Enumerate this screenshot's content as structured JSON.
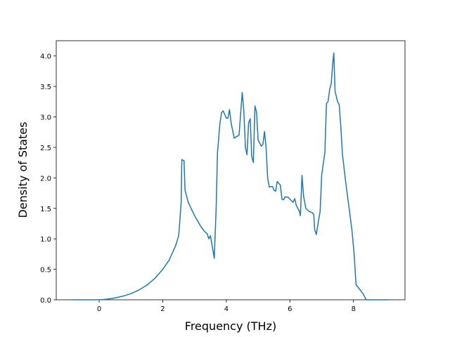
{
  "chart_data": {
    "type": "line",
    "xlabel": "Frequency (THz)",
    "ylabel": "Density of States",
    "color": "#1f77b4",
    "x": [
      -0.86,
      0,
      0.25,
      0.5,
      0.75,
      1.0,
      1.25,
      1.5,
      1.75,
      2.0,
      2.2,
      2.4,
      2.5,
      2.52,
      2.58,
      2.6,
      2.67,
      2.7,
      2.8,
      3.0,
      3.2,
      3.3,
      3.4,
      3.45,
      3.5,
      3.55,
      3.62,
      3.68,
      3.72,
      3.8,
      3.85,
      3.9,
      4.0,
      4.05,
      4.1,
      4.15,
      4.25,
      4.3,
      4.4,
      4.5,
      4.55,
      4.6,
      4.65,
      4.7,
      4.75,
      4.8,
      4.85,
      4.9,
      4.95,
      5.0,
      5.1,
      5.15,
      5.2,
      5.25,
      5.3,
      5.35,
      5.45,
      5.5,
      5.55,
      5.6,
      5.7,
      5.75,
      5.8,
      5.85,
      5.95,
      6.0,
      6.1,
      6.15,
      6.2,
      6.3,
      6.33,
      6.38,
      6.43,
      6.5,
      6.6,
      6.7,
      6.75,
      6.78,
      6.83,
      6.9,
      6.95,
      7.0,
      7.1,
      7.15,
      7.2,
      7.25,
      7.3,
      7.35,
      7.38,
      7.42,
      7.5,
      7.55,
      7.6,
      7.65,
      7.75,
      7.85,
      7.95,
      8.02,
      8.08,
      8.15,
      8.3,
      8.4,
      9.1
    ],
    "values": [
      0,
      0,
      0.01,
      0.03,
      0.06,
      0.1,
      0.16,
      0.24,
      0.35,
      0.5,
      0.65,
      0.88,
      1.05,
      1.17,
      1.6,
      2.3,
      2.28,
      1.8,
      1.6,
      1.38,
      1.2,
      1.13,
      1.08,
      1.0,
      1.05,
      0.9,
      0.68,
      1.5,
      2.4,
      2.9,
      3.07,
      3.1,
      2.98,
      2.98,
      3.12,
      2.9,
      2.65,
      2.67,
      2.7,
      3.4,
      3.1,
      2.5,
      2.38,
      2.9,
      2.97,
      2.35,
      2.25,
      3.18,
      3.08,
      2.62,
      2.52,
      2.55,
      2.76,
      2.5,
      2.0,
      1.85,
      1.86,
      1.8,
      1.78,
      1.94,
      1.88,
      1.65,
      1.64,
      1.69,
      1.68,
      1.65,
      1.6,
      1.66,
      1.55,
      1.45,
      1.38,
      2.04,
      1.7,
      1.5,
      1.45,
      1.43,
      1.4,
      1.15,
      1.07,
      1.3,
      1.45,
      2.05,
      2.42,
      3.22,
      3.25,
      3.45,
      3.55,
      3.9,
      4.05,
      3.42,
      3.25,
      3.2,
      2.85,
      2.4,
      1.95,
      1.55,
      1.15,
      0.75,
      0.25,
      0.2,
      0.1,
      0.0,
      0
    ],
    "xlim": [
      -1.35,
      9.62
    ],
    "xticks": [
      0,
      2,
      4,
      6,
      8
    ],
    "ylim": [
      0,
      4.25
    ],
    "yticks": [
      {
        "value": 0,
        "label": "0.0"
      },
      {
        "value": 0.5,
        "label": "0.5"
      },
      {
        "value": 1,
        "label": "1.0"
      },
      {
        "value": 1.5,
        "label": "1.5"
      },
      {
        "value": 2,
        "label": "2.0"
      },
      {
        "value": 2.5,
        "label": "2.5"
      },
      {
        "value": 3,
        "label": "3.0"
      },
      {
        "value": 3.5,
        "label": "3.5"
      },
      {
        "value": 4,
        "label": "4.0"
      }
    ]
  }
}
